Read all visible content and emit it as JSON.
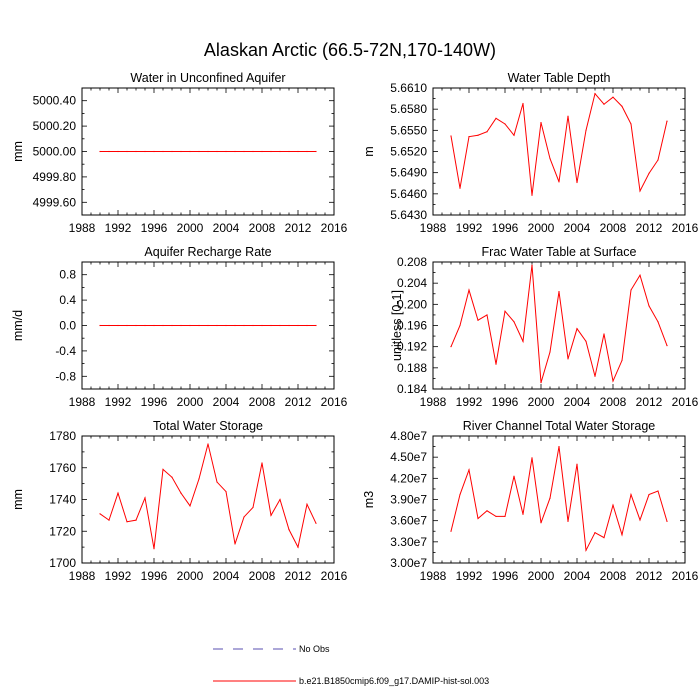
{
  "title": "Alaskan Arctic (66.5-72N,170-140W)",
  "colors": {
    "model": "#ff0000",
    "obs": "#5a4fb0",
    "axis": "#000000"
  },
  "legend": {
    "obs_label": "No Obs",
    "model_label": "b.e21.B1850cmip6.f09_g17.DAMIP-hist-sol.003"
  },
  "chart_data": [
    {
      "type": "line",
      "title": "Water in Unconfined Aquifer",
      "ylabel": "mm",
      "xlim": [
        1988,
        2016
      ],
      "ylim": [
        4999.5,
        5000.5
      ],
      "xticks": [
        "1988",
        "1992",
        "1996",
        "2000",
        "2004",
        "2008",
        "2012",
        "2016"
      ],
      "yticks": [
        "5000.40",
        "5000.20",
        "5000.00",
        "4999.80",
        "4999.60"
      ],
      "x": [
        1990,
        1991,
        1992,
        1993,
        1994,
        1995,
        1996,
        1997,
        1998,
        1999,
        2000,
        2001,
        2002,
        2003,
        2004,
        2005,
        2006,
        2007,
        2008,
        2009,
        2010,
        2011,
        2012,
        2013,
        2014
      ],
      "values": [
        5000,
        5000,
        5000,
        5000,
        5000,
        5000,
        5000,
        5000,
        5000,
        5000,
        5000,
        5000,
        5000,
        5000,
        5000,
        5000,
        5000,
        5000,
        5000,
        5000,
        5000,
        5000,
        5000,
        5000,
        5000
      ]
    },
    {
      "type": "line",
      "title": "Water Table Depth",
      "ylabel": "m",
      "xlim": [
        1988,
        2016
      ],
      "ylim": [
        5.643,
        5.661
      ],
      "xticks": [
        "1988",
        "1992",
        "1996",
        "2000",
        "2004",
        "2008",
        "2012",
        "2016"
      ],
      "yticks": [
        "5.6610",
        "5.6580",
        "5.6550",
        "5.6520",
        "5.6490",
        "5.6460",
        "5.6430"
      ],
      "x": [
        1990,
        1991,
        1992,
        1993,
        1994,
        1995,
        1996,
        1997,
        1998,
        1999,
        2000,
        2001,
        2002,
        2003,
        2004,
        2005,
        2006,
        2007,
        2008,
        2009,
        2010,
        2011,
        2012,
        2013,
        2014
      ],
      "values": [
        5.6542,
        5.6468,
        5.6541,
        5.6543,
        5.6548,
        5.6567,
        5.6559,
        5.6543,
        5.6588,
        5.6458,
        5.6561,
        5.651,
        5.6477,
        5.657,
        5.6476,
        5.655,
        5.6602,
        5.6587,
        5.6597,
        5.6584,
        5.6559,
        5.6464,
        5.6489,
        5.6508,
        5.6563
      ]
    },
    {
      "type": "line",
      "title": "Aquifer Recharge Rate",
      "ylabel": "mm/d",
      "xlim": [
        1988,
        2016
      ],
      "ylim": [
        -1,
        1
      ],
      "xticks": [
        "1988",
        "1992",
        "1996",
        "2000",
        "2004",
        "2008",
        "2012",
        "2016"
      ],
      "yticks": [
        "0.8",
        "0.4",
        "0.0",
        "-0.4",
        "-0.8"
      ],
      "x": [
        1990,
        1991,
        1992,
        1993,
        1994,
        1995,
        1996,
        1997,
        1998,
        1999,
        2000,
        2001,
        2002,
        2003,
        2004,
        2005,
        2006,
        2007,
        2008,
        2009,
        2010,
        2011,
        2012,
        2013,
        2014
      ],
      "values": [
        0,
        0,
        0,
        0,
        0,
        0,
        0,
        0,
        0,
        0,
        0,
        0,
        0,
        0,
        0,
        0,
        0,
        0,
        0,
        0,
        0,
        0,
        0,
        0,
        0
      ]
    },
    {
      "type": "line",
      "title": "Frac Water Table at Surface",
      "ylabel": "unitless [0-1]",
      "xlim": [
        1988,
        2016
      ],
      "ylim": [
        0.184,
        0.208
      ],
      "xticks": [
        "1988",
        "1992",
        "1996",
        "2000",
        "2004",
        "2008",
        "2012",
        "2016"
      ],
      "yticks": [
        "0.208",
        "0.204",
        "0.200",
        "0.196",
        "0.192",
        "0.188",
        "0.184"
      ],
      "x": [
        1990,
        1991,
        1992,
        1993,
        1994,
        1995,
        1996,
        1997,
        1998,
        1999,
        2000,
        2001,
        2002,
        2003,
        2004,
        2005,
        2006,
        2007,
        2008,
        2009,
        2010,
        2011,
        2012,
        2013,
        2014
      ],
      "values": [
        0.192,
        0.196,
        0.2027,
        0.197,
        0.198,
        0.1887,
        0.1987,
        0.1967,
        0.193,
        0.2074,
        0.1852,
        0.191,
        0.2024,
        0.1897,
        0.1954,
        0.193,
        0.1864,
        0.1944,
        0.1855,
        0.1894,
        0.2027,
        0.2055,
        0.1997,
        0.1967,
        0.1922
      ]
    },
    {
      "type": "line",
      "title": "Total Water Storage",
      "ylabel": "mm",
      "xlim": [
        1988,
        2016
      ],
      "ylim": [
        1700,
        1780
      ],
      "xticks": [
        "1988",
        "1992",
        "1996",
        "2000",
        "2004",
        "2008",
        "2012",
        "2016"
      ],
      "yticks": [
        "1780",
        "1760",
        "1740",
        "1720",
        "1700"
      ],
      "x": [
        1990,
        1991,
        1992,
        1993,
        1994,
        1995,
        1996,
        1997,
        1998,
        1999,
        2000,
        2001,
        2002,
        2003,
        2004,
        2005,
        2006,
        2007,
        2008,
        2009,
        2010,
        2011,
        2012,
        2013,
        2014
      ],
      "values": [
        1731,
        1727,
        1744,
        1726,
        1727,
        1741,
        1709,
        1759,
        1754,
        1744,
        1736,
        1753,
        1775,
        1751,
        1745,
        1712,
        1729,
        1735,
        1763,
        1730,
        1740,
        1721,
        1710,
        1737,
        1725
      ]
    },
    {
      "type": "line",
      "title": "River Channel Total Water Storage",
      "ylabel": "m3",
      "xlim": [
        1988,
        2016
      ],
      "ylim": [
        30000000,
        48000000
      ],
      "xticks": [
        "1988",
        "1992",
        "1996",
        "2000",
        "2004",
        "2008",
        "2012",
        "2016"
      ],
      "yticks": [
        "4.80e7",
        "4.50e7",
        "4.20e7",
        "3.90e7",
        "3.60e7",
        "3.30e7",
        "3.00e7"
      ],
      "x": [
        1990,
        1991,
        1992,
        1993,
        1994,
        1995,
        1996,
        1997,
        1998,
        1999,
        2000,
        2001,
        2002,
        2003,
        2004,
        2005,
        2006,
        2007,
        2008,
        2009,
        2010,
        2011,
        2012,
        2013,
        2014
      ],
      "values": [
        34500000,
        39700000,
        43200000,
        36300000,
        37400000,
        36600000,
        36600000,
        42300000,
        36900000,
        44900000,
        35700000,
        39200000,
        46500000,
        35900000,
        44000000,
        31800000,
        34300000,
        33600000,
        38200000,
        34000000,
        39700000,
        36100000,
        39700000,
        40200000,
        35900000
      ]
    }
  ]
}
